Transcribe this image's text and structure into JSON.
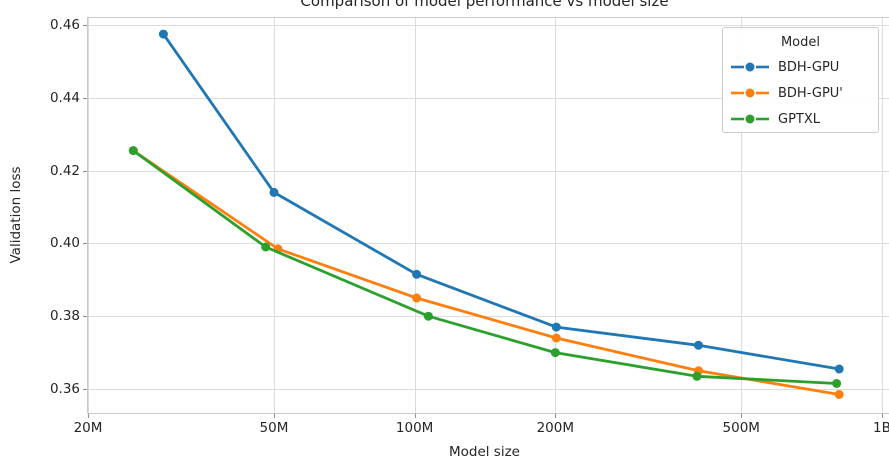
{
  "title": "Comparison of model performance vs model size",
  "axes": {
    "x_label": "Model size",
    "y_label": "Validation loss"
  },
  "legend": {
    "title": "Model",
    "entries": [
      {
        "label": "BDH-GPU",
        "color": "#1f77b4"
      },
      {
        "label": "BDH-GPU'",
        "color": "#ff7f0e"
      },
      {
        "label": "GPTXL",
        "color": "#2ca02c"
      }
    ]
  },
  "chart_data": {
    "type": "line",
    "title": "Comparison of model performance vs model size",
    "xlabel": "Model size",
    "ylabel": "Validation loss",
    "x_scale": "log",
    "xlim": [
      20000000,
      1040000000
    ],
    "ylim": [
      0.3534,
      0.4622
    ],
    "grid": true,
    "legend_position": "upper right",
    "x_ticks": [
      {
        "value": 20000000,
        "label": "20M"
      },
      {
        "value": 50000000,
        "label": "50M"
      },
      {
        "value": 100000000,
        "label": "100M"
      },
      {
        "value": 200000000,
        "label": "200M"
      },
      {
        "value": 500000000,
        "label": "500M"
      },
      {
        "value": 1000000000,
        "label": "1B"
      }
    ],
    "y_ticks": [
      {
        "value": 0.36,
        "label": "0.36"
      },
      {
        "value": 0.38,
        "label": "0.38"
      },
      {
        "value": 0.4,
        "label": "0.40"
      },
      {
        "value": 0.42,
        "label": "0.42"
      },
      {
        "value": 0.44,
        "label": "0.44"
      },
      {
        "value": 0.46,
        "label": "0.46"
      }
    ],
    "series": [
      {
        "name": "BDH-GPU",
        "color": "#1f77b4",
        "marker": "circle",
        "points": [
          [
            29000000,
            0.4575
          ],
          [
            50000000,
            0.414
          ],
          [
            101000000,
            0.3915
          ],
          [
            201000000,
            0.377
          ],
          [
            405000000,
            0.372
          ],
          [
            810000000,
            0.3655
          ]
        ]
      },
      {
        "name": "BDH-GPU'",
        "color": "#ff7f0e",
        "marker": "circle",
        "points": [
          [
            25000000,
            0.4255
          ],
          [
            51000000,
            0.3985
          ],
          [
            101000000,
            0.385
          ],
          [
            201000000,
            0.374
          ],
          [
            405000000,
            0.365
          ],
          [
            810000000,
            0.3585
          ]
        ]
      },
      {
        "name": "GPTXL",
        "color": "#2ca02c",
        "marker": "circle",
        "points": [
          [
            25000000,
            0.4255
          ],
          [
            48000000,
            0.399
          ],
          [
            107000000,
            0.38
          ],
          [
            200000000,
            0.37
          ],
          [
            402000000,
            0.3635
          ],
          [
            800000000,
            0.3615
          ]
        ]
      }
    ]
  },
  "colors": {
    "grid": "#dcdcdc",
    "spine": "#c9c9c9",
    "tick": "#8f8f8f",
    "text": "#262626",
    "background": "#ffffff"
  }
}
